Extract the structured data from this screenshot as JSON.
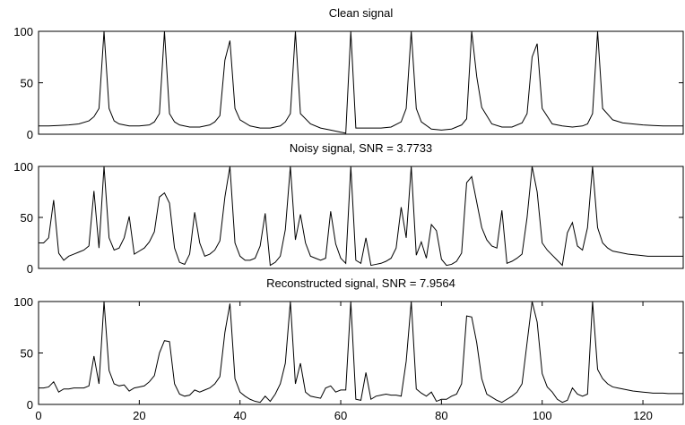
{
  "chart_data": [
    {
      "type": "line",
      "title": "Clean signal",
      "xlim": [
        0,
        128
      ],
      "ylim": [
        0,
        100
      ],
      "xticks": [],
      "yticks": [
        0,
        50,
        100
      ],
      "x": [
        0,
        2,
        4,
        6,
        8,
        10,
        11,
        12,
        13,
        14,
        15,
        16,
        18,
        20,
        22,
        23,
        24,
        25,
        26,
        27,
        28,
        30,
        32,
        34,
        35,
        36,
        37,
        38,
        39,
        40,
        42,
        44,
        46,
        48,
        49,
        50,
        51,
        52,
        54,
        56,
        58,
        60,
        61,
        62,
        63,
        64,
        66,
        68,
        70,
        72,
        73,
        74,
        75,
        76,
        78,
        80,
        82,
        84,
        85,
        86,
        87,
        88,
        90,
        92,
        94,
        96,
        97,
        98,
        99,
        100,
        102,
        104,
        106,
        108,
        109,
        110,
        111,
        112,
        114,
        116,
        118,
        120,
        122,
        124,
        126,
        128
      ],
      "y": [
        8,
        8,
        8.5,
        9,
        10,
        13,
        17,
        25,
        100,
        25,
        13,
        10,
        8,
        8,
        9,
        12,
        20,
        100,
        20,
        12,
        9,
        7,
        7,
        9,
        12,
        18,
        72,
        91,
        25,
        14,
        8,
        6,
        6,
        8,
        12,
        20,
        100,
        20,
        10,
        6,
        4,
        2,
        1,
        100,
        6,
        6,
        6,
        6,
        7,
        12,
        25,
        100,
        25,
        12,
        5,
        4,
        5,
        9,
        15,
        100,
        56,
        26,
        10,
        7,
        7,
        11,
        20,
        75,
        88,
        25,
        10,
        8,
        7,
        8,
        10,
        20,
        100,
        25,
        14,
        11,
        10,
        9,
        8.5,
        8,
        8,
        8
      ]
    },
    {
      "type": "line",
      "title": "Noisy signal,  SNR = 3.7733",
      "xlim": [
        0,
        128
      ],
      "ylim": [
        0,
        100
      ],
      "xticks": [],
      "yticks": [
        0,
        50,
        100
      ],
      "x": [
        0,
        1,
        2,
        3,
        4,
        5,
        6,
        7,
        8,
        9,
        10,
        11,
        12,
        13,
        14,
        15,
        16,
        17,
        18,
        19,
        20,
        21,
        22,
        23,
        24,
        25,
        26,
        27,
        28,
        29,
        30,
        31,
        32,
        33,
        34,
        35,
        36,
        37,
        38,
        39,
        40,
        41,
        42,
        43,
        44,
        45,
        46,
        47,
        48,
        49,
        50,
        51,
        52,
        53,
        54,
        55,
        56,
        57,
        58,
        59,
        60,
        61,
        62,
        63,
        64,
        65,
        66,
        67,
        68,
        69,
        70,
        71,
        72,
        73,
        74,
        75,
        76,
        77,
        78,
        79,
        80,
        81,
        82,
        83,
        84,
        85,
        86,
        87,
        88,
        89,
        90,
        91,
        92,
        93,
        94,
        95,
        96,
        97,
        98,
        99,
        100,
        101,
        102,
        103,
        104,
        105,
        106,
        107,
        108,
        109,
        110,
        111,
        112,
        113,
        114,
        115,
        116,
        117,
        118,
        119,
        120,
        121,
        122,
        123,
        124,
        125,
        126,
        127,
        128
      ],
      "y": [
        25,
        25,
        30,
        67,
        15,
        8,
        12,
        14,
        16,
        18,
        22,
        76,
        20,
        100,
        30,
        18,
        20,
        30,
        51,
        14,
        17,
        20,
        26,
        36,
        70,
        74,
        64,
        20,
        6,
        4,
        14,
        55,
        25,
        12,
        14,
        18,
        27,
        70,
        100,
        25,
        12,
        8,
        8,
        10,
        22,
        54,
        3,
        6,
        12,
        38,
        100,
        28,
        53,
        25,
        12,
        10,
        8,
        10,
        56,
        24,
        10,
        5,
        100,
        8,
        5,
        30,
        3,
        4,
        5,
        7,
        10,
        20,
        60,
        30,
        100,
        13,
        26,
        10,
        43,
        37,
        9,
        3,
        4,
        7,
        15,
        84,
        90,
        65,
        40,
        28,
        22,
        20,
        57,
        5,
        7,
        10,
        14,
        50,
        100,
        75,
        25,
        18,
        13,
        8,
        3,
        35,
        45,
        22,
        18,
        40,
        100,
        40,
        25,
        20,
        17,
        16,
        15,
        14,
        13.5,
        13,
        12.5,
        12,
        12,
        12,
        12,
        12,
        12,
        12,
        12
      ]
    },
    {
      "type": "line",
      "title": "Reconstructed signal,  SNR = 7.9564",
      "xlim": [
        0,
        128
      ],
      "ylim": [
        0,
        100
      ],
      "xticks": [
        0,
        20,
        40,
        60,
        80,
        100,
        120
      ],
      "yticks": [
        0,
        50,
        100
      ],
      "x": [
        0,
        1,
        2,
        3,
        4,
        5,
        6,
        7,
        8,
        9,
        10,
        11,
        12,
        13,
        14,
        15,
        16,
        17,
        18,
        19,
        20,
        21,
        22,
        23,
        24,
        25,
        26,
        27,
        28,
        29,
        30,
        31,
        32,
        33,
        34,
        35,
        36,
        37,
        38,
        39,
        40,
        41,
        42,
        43,
        44,
        45,
        46,
        47,
        48,
        49,
        50,
        51,
        52,
        53,
        54,
        55,
        56,
        57,
        58,
        59,
        60,
        61,
        62,
        63,
        64,
        65,
        66,
        67,
        68,
        69,
        70,
        71,
        72,
        73,
        74,
        75,
        76,
        77,
        78,
        79,
        80,
        81,
        82,
        83,
        84,
        85,
        86,
        87,
        88,
        89,
        90,
        91,
        92,
        93,
        94,
        95,
        96,
        97,
        98,
        99,
        100,
        101,
        102,
        103,
        104,
        105,
        106,
        107,
        108,
        109,
        110,
        111,
        112,
        113,
        114,
        115,
        116,
        117,
        118,
        119,
        120,
        121,
        122,
        123,
        124,
        125,
        126,
        127,
        128
      ],
      "y": [
        16,
        16,
        17,
        22,
        12,
        15,
        15,
        16,
        16,
        16,
        18,
        47,
        20,
        100,
        33,
        20,
        18,
        19,
        13,
        16,
        17,
        18,
        22,
        28,
        50,
        62,
        61,
        20,
        10,
        8,
        9,
        14,
        12,
        14,
        16,
        20,
        27,
        70,
        98,
        25,
        12,
        8,
        5,
        3,
        2,
        8,
        3,
        10,
        20,
        40,
        100,
        20,
        40,
        12,
        8,
        7,
        6,
        16,
        18,
        12,
        14,
        14,
        100,
        5,
        4,
        31,
        5,
        8,
        9,
        10,
        9,
        9,
        8,
        42,
        100,
        15,
        11,
        8,
        12,
        3,
        5,
        5,
        8,
        10,
        20,
        86,
        85,
        60,
        25,
        10,
        7,
        4,
        2,
        5,
        8,
        12,
        20,
        60,
        100,
        80,
        30,
        17,
        12,
        5,
        2,
        4,
        16,
        10,
        8,
        10,
        100,
        34,
        25,
        20,
        17,
        16,
        15,
        14,
        13,
        12.5,
        12,
        11.5,
        11,
        11,
        11,
        10.5,
        10.5,
        10.5,
        10.5
      ]
    }
  ]
}
